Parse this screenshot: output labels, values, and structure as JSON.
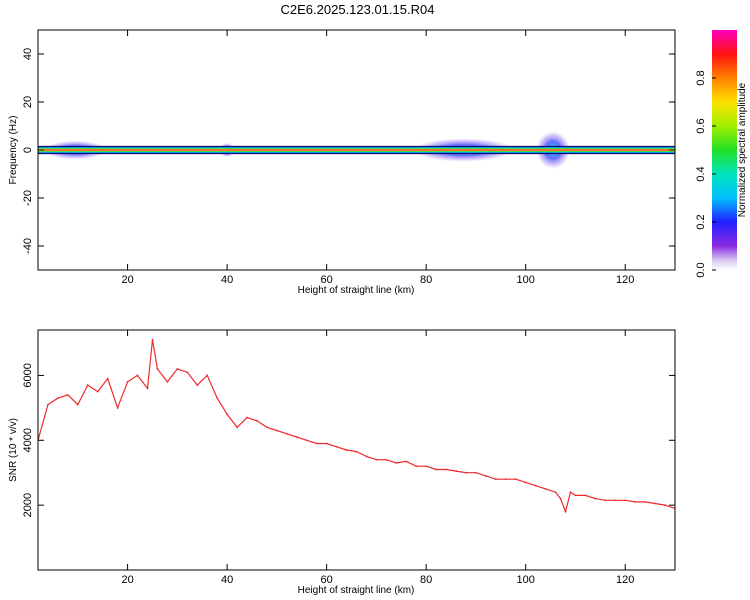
{
  "title": "C2E6.2025.123.01.15.R04",
  "colors": {
    "snr_line": "#ee2b2b",
    "band_center": "#e8134a",
    "axis": "#000000"
  },
  "chart_data": [
    {
      "type": "heatmap",
      "xlabel": "Height of straight line (km)",
      "ylabel": "Frequency (Hz)",
      "xlim": [
        2,
        130
      ],
      "ylim": [
        -50,
        50
      ],
      "x_ticks": [
        20,
        40,
        60,
        80,
        100,
        120
      ],
      "y_ticks": [
        -40,
        -20,
        0,
        20,
        40
      ],
      "colorbar": {
        "label": "Normalized spectral amplitude",
        "range": [
          0,
          1
        ],
        "ticks": [
          0.0,
          0.2,
          0.4,
          0.6,
          0.8
        ],
        "colormap": "rainbow (violet to magenta)"
      },
      "energy_band": {
        "center_hz": 0,
        "half_width_hz": 1.5,
        "note": "narrow high-amplitude band near 0 Hz across all heights",
        "spread_regions": [
          {
            "x_range": [
              3,
              16
            ],
            "max_spread_hz": 4
          },
          {
            "x_range": [
              39,
              41
            ],
            "max_spread_hz": 3
          },
          {
            "x_range": [
              77,
              98
            ],
            "max_spread_hz": 5
          },
          {
            "x_range": [
              102,
              109
            ],
            "max_spread_hz": 8
          }
        ]
      }
    },
    {
      "type": "line",
      "xlabel": "Height of straight line (km)",
      "ylabel": "SNR (10 * v/v)",
      "xlim": [
        2,
        130
      ],
      "ylim": [
        0,
        7400
      ],
      "x_ticks": [
        20,
        40,
        60,
        80,
        100,
        120
      ],
      "y_ticks": [
        2000,
        4000,
        6000
      ],
      "series": [
        {
          "x": [
            2,
            4,
            6,
            8,
            10,
            12,
            14,
            16,
            18,
            20,
            22,
            24,
            25,
            26,
            28,
            30,
            32,
            34,
            36,
            38,
            40,
            42,
            44,
            46,
            48,
            50,
            52,
            54,
            56,
            58,
            60,
            62,
            64,
            66,
            68,
            70,
            72,
            74,
            76,
            78,
            80,
            82,
            84,
            86,
            88,
            90,
            92,
            94,
            96,
            98,
            100,
            102,
            104,
            106,
            107,
            108,
            109,
            110,
            112,
            114,
            116,
            118,
            120,
            122,
            124,
            126,
            128,
            130
          ],
          "y": [
            4000,
            5100,
            5300,
            5400,
            5100,
            5700,
            5500,
            5900,
            5000,
            5800,
            6000,
            5600,
            7100,
            6200,
            5800,
            6200,
            6100,
            5700,
            6000,
            5300,
            4800,
            4400,
            4700,
            4600,
            4400,
            4300,
            4200,
            4100,
            4000,
            3900,
            3900,
            3800,
            3700,
            3650,
            3500,
            3400,
            3400,
            3300,
            3350,
            3200,
            3200,
            3100,
            3100,
            3050,
            3000,
            3000,
            2900,
            2800,
            2800,
            2800,
            2700,
            2600,
            2500,
            2400,
            2200,
            1800,
            2400,
            2300,
            2300,
            2200,
            2150,
            2150,
            2150,
            2100,
            2100,
            2050,
            2000,
            1900
          ]
        }
      ]
    }
  ]
}
